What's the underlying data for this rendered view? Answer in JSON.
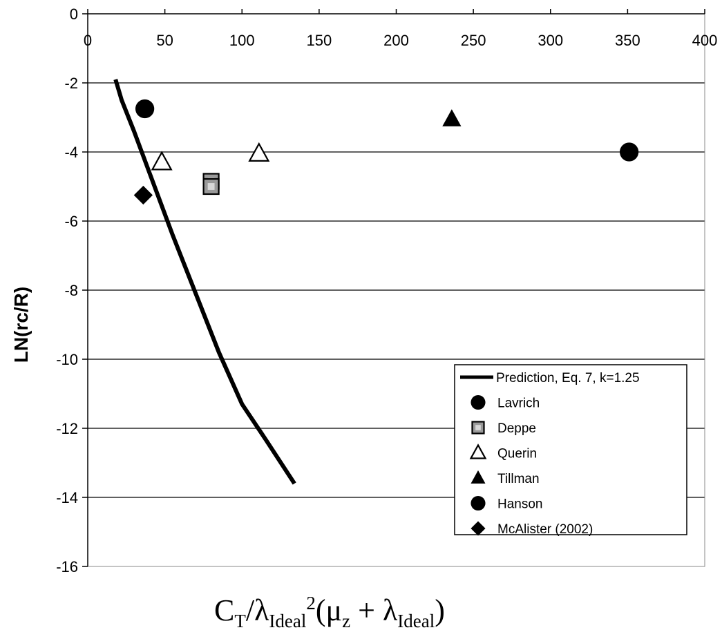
{
  "chart_data": {
    "type": "scatter",
    "title": "",
    "ylabel": "LN(rc/R)",
    "xlabel": {
      "c": "C",
      "t": "T",
      "slash": "/λ",
      "ideal1": "Ideal",
      "sq": "2",
      "open": "(μ",
      "z": "z",
      "plus": " + λ",
      "ideal2": "Ideal",
      "close": ")"
    },
    "xlim": [
      0,
      400
    ],
    "ylim": [
      -16,
      0
    ],
    "x_ticks": [
      "0",
      "50",
      "100",
      "150",
      "200",
      "250",
      "300",
      "350",
      "400"
    ],
    "y_ticks": [
      "0",
      "-2",
      "-4",
      "-6",
      "-8",
      "-10",
      "-12",
      "-14",
      "-16"
    ],
    "x_axis_position": "top",
    "grid": "horizontal",
    "legend_position": "bottom-right",
    "series": [
      {
        "name": "Prediction, Eq. 7, k=1.25",
        "kind": "line",
        "marker": "none",
        "color": "#000000",
        "x": [
          18,
          22,
          30,
          40,
          55,
          70,
          85,
          100,
          115,
          134
        ],
        "y": [
          -1.9,
          -2.5,
          -3.4,
          -4.6,
          -6.4,
          -8.1,
          -9.8,
          -11.3,
          -12.3,
          -13.6
        ]
      },
      {
        "name": "Lavrich",
        "kind": "scatter",
        "marker": "circle",
        "color": "#000000",
        "x": [
          37
        ],
        "y": [
          -2.75
        ]
      },
      {
        "name": "Deppe",
        "kind": "scatter",
        "marker": "square-dotted",
        "color": "#000000",
        "x": [
          80,
          80
        ],
        "y": [
          -4.85,
          -5.0
        ]
      },
      {
        "name": "Querin",
        "kind": "scatter",
        "marker": "triangle-open",
        "color": "#000000",
        "x": [
          48,
          111
        ],
        "y": [
          -4.3,
          -4.05
        ]
      },
      {
        "name": "Tillman",
        "kind": "scatter",
        "marker": "triangle",
        "color": "#000000",
        "x": [
          236
        ],
        "y": [
          -3.05
        ]
      },
      {
        "name": "Hanson",
        "kind": "scatter",
        "marker": "circle",
        "color": "#000000",
        "x": [
          351
        ],
        "y": [
          -4.0
        ]
      },
      {
        "name": "McAlister (2002)",
        "kind": "scatter",
        "marker": "diamond",
        "color": "#000000",
        "x": [
          36
        ],
        "y": [
          -5.25
        ]
      }
    ]
  }
}
